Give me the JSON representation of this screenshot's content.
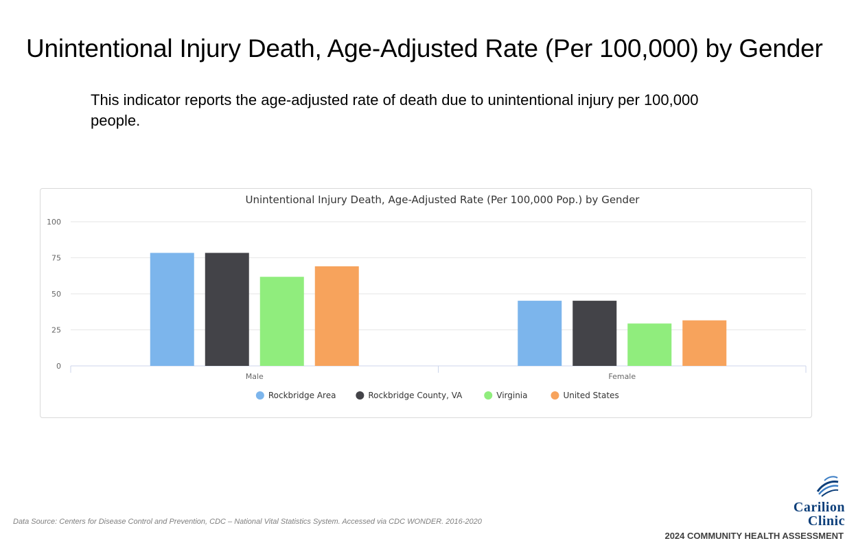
{
  "page": {
    "title": "Unintentional Injury Death, Age-Adjusted Rate (Per 100,000) by Gender",
    "description": "This indicator reports the age-adjusted rate of death due to unintentional injury per 100,000 people.",
    "source_note": "Data Source: Centers for Disease Control and Prevention, CDC – National Vital Statistics System. Accessed via CDC WONDER. 2016-2020",
    "footer_label": "2024 COMMUNITY HEALTH ASSESSMENT",
    "logo": {
      "line1": "Carilion",
      "line2": "Clinic",
      "icon": "swoosh-logo-icon"
    }
  },
  "chart_data": {
    "type": "bar",
    "title": "Unintentional Injury Death, Age-Adjusted Rate (Per 100,000 Pop.) by Gender",
    "xlabel": "",
    "ylabel": "",
    "ylim": [
      0,
      100
    ],
    "yticks": [
      0,
      25,
      50,
      75,
      100
    ],
    "grid": true,
    "legend_position": "bottom-center",
    "categories": [
      "Male",
      "Female"
    ],
    "series": [
      {
        "name": "Rockbridge Area",
        "color": "#7cb5ec",
        "values": [
          78.4,
          45.2
        ]
      },
      {
        "name": "Rockbridge County, VA",
        "color": "#434348",
        "values": [
          78.4,
          45.2
        ]
      },
      {
        "name": "Virginia",
        "color": "#90ed7d",
        "values": [
          61.8,
          29.4
        ]
      },
      {
        "name": "United States",
        "color": "#f7a35c",
        "values": [
          69.1,
          31.6
        ]
      }
    ]
  }
}
